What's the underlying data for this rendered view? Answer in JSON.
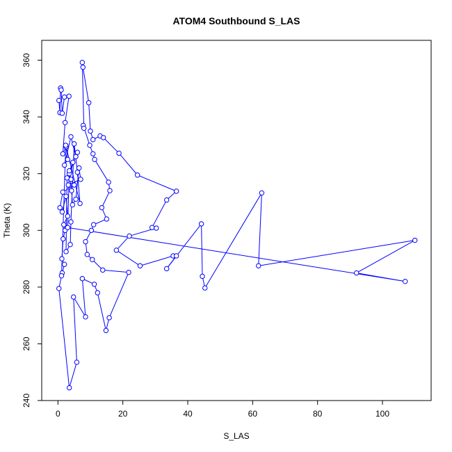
{
  "chart_data": {
    "type": "line",
    "title": "ATOM4 Southbound S_LAS",
    "xlabel": "S_LAS",
    "ylabel": "Theta (K)",
    "xlim": [
      -5,
      115
    ],
    "ylim": [
      240,
      367
    ],
    "x_ticks": [
      0,
      20,
      40,
      60,
      80,
      100
    ],
    "y_ticks": [
      240,
      260,
      280,
      300,
      320,
      340,
      360
    ],
    "series_color": "#0000ff",
    "markers": "open-circle",
    "grid": false,
    "series": [
      {
        "points": [
          [
            0.3,
            345.8
          ],
          [
            0.6,
            341.5
          ],
          [
            0.8,
            350.2
          ],
          [
            1.0,
            349.5
          ],
          [
            1.3,
            341.3
          ],
          [
            2.0,
            347.0
          ],
          [
            3.4,
            347.3
          ],
          [
            2.2,
            338.0
          ],
          [
            1.5,
            327.0
          ],
          [
            2.5,
            329.5
          ],
          [
            3.0,
            325.0
          ],
          [
            2.0,
            323.0
          ],
          [
            4.0,
            333.0
          ],
          [
            5.5,
            326.0
          ],
          [
            6.0,
            327.5
          ],
          [
            3.5,
            320.0
          ],
          [
            4.0,
            318.0
          ],
          [
            5.0,
            316.0
          ],
          [
            1.5,
            313.5
          ],
          [
            0.6,
            308.0
          ],
          [
            1.3,
            306.5
          ],
          [
            2.5,
            312.0
          ],
          [
            3.0,
            305.0
          ],
          [
            1.8,
            302.0
          ],
          [
            2.2,
            300.0
          ],
          [
            1.6,
            297.0
          ],
          [
            1.2,
            290.0
          ],
          [
            2.0,
            288.0
          ],
          [
            1.3,
            285.0
          ],
          [
            0.3,
            279.5
          ],
          [
            3.5,
            244.5
          ],
          [
            5.8,
            253.5
          ],
          [
            4.8,
            276.5
          ],
          [
            8.5,
            269.5
          ],
          [
            7.5,
            283.0
          ],
          [
            11.2,
            281.0
          ],
          [
            12.2,
            278.0
          ],
          [
            14.8,
            264.7
          ],
          [
            15.8,
            269.2
          ],
          [
            21.8,
            285.2
          ],
          [
            13.8,
            286.0
          ],
          [
            10.6,
            289.7
          ],
          [
            9.0,
            291.5
          ],
          [
            8.5,
            296.0
          ],
          [
            10.3,
            300.0
          ],
          [
            11.0,
            302.0
          ],
          [
            15.0,
            304.0
          ],
          [
            13.5,
            308.0
          ],
          [
            16.0,
            314.0
          ],
          [
            15.6,
            317.0
          ],
          [
            11.3,
            325.0
          ],
          [
            10.8,
            327.0
          ],
          [
            9.8,
            330.0
          ],
          [
            7.8,
            337.0
          ],
          [
            8.0,
            336.0
          ],
          [
            7.5,
            359.2
          ],
          [
            7.7,
            357.5
          ],
          [
            9.5,
            345.0
          ],
          [
            10.0,
            335.0
          ],
          [
            10.8,
            332.0
          ],
          [
            13.0,
            333.3
          ],
          [
            14.0,
            332.7
          ],
          [
            18.8,
            327.2
          ],
          [
            24.5,
            319.5
          ],
          [
            36.5,
            313.8
          ],
          [
            33.5,
            310.7
          ],
          [
            29.0,
            301.0
          ],
          [
            30.3,
            300.8
          ],
          [
            22.0,
            298.0
          ],
          [
            18.0,
            293.0
          ],
          [
            25.3,
            287.5
          ],
          [
            35.5,
            291.0
          ],
          [
            36.5,
            291.0
          ],
          [
            33.5,
            286.5
          ],
          [
            44.2,
            302.3
          ],
          [
            44.5,
            283.8
          ],
          [
            45.3,
            279.7
          ],
          [
            62.8,
            313.2
          ],
          [
            61.8,
            287.5
          ],
          [
            110.0,
            296.5
          ],
          [
            92.0,
            285.0
          ],
          [
            107.0,
            282.0
          ],
          [
            3.0,
            301.0
          ],
          [
            3.5,
            321.0
          ],
          [
            4.2,
            314.0
          ],
          [
            4.5,
            309.0
          ],
          [
            5.5,
            311.0
          ],
          [
            6.5,
            322.0
          ],
          [
            7.0,
            318.0
          ],
          [
            3.2,
            316.0
          ],
          [
            4.6,
            324.0
          ],
          [
            2.8,
            318.5
          ],
          [
            2.5,
            292.5
          ],
          [
            3.8,
            295.0
          ],
          [
            4.0,
            303.0
          ],
          [
            5.0,
            330.5
          ],
          [
            6.0,
            320.5
          ],
          [
            6.8,
            309.5
          ],
          [
            2.4,
            330.0
          ],
          [
            1.1,
            284.0
          ]
        ]
      }
    ]
  }
}
